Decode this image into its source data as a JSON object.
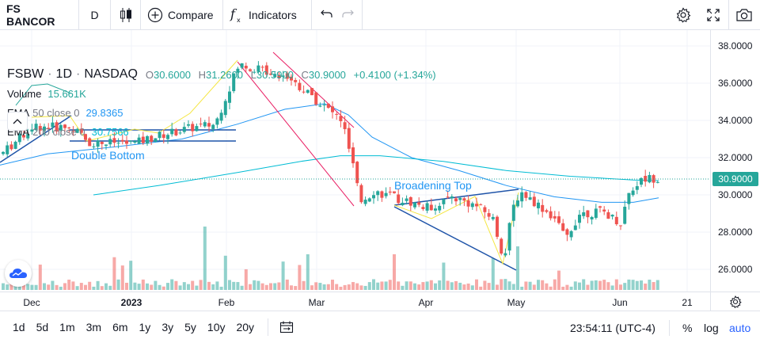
{
  "toolbar": {
    "symbol": "FS BANCOR",
    "interval": "D",
    "compare_label": "Compare",
    "indicators_label": "Indicators"
  },
  "legend": {
    "ticker": "FSBW",
    "interval": "1D",
    "exchange": "NASDAQ",
    "open_k": "O",
    "open": "30.6000",
    "high_k": "H",
    "high": "31.2600",
    "low_k": "L",
    "low": "30.5900",
    "close_k": "C",
    "close": "30.9000",
    "change": "+0.4100 (+1.34%)",
    "volume_name": "Volume",
    "volume_value": "15.661K",
    "ema1_name": "EMA",
    "ema1_params": "50 close 0",
    "ema1_value": "29.8365",
    "ema2_name": "EMA",
    "ema2_params": "200 close 0",
    "ema2_value": "30.7566"
  },
  "drawings": {
    "double_bottom_label": "Double Bottom",
    "broadening_top_label": "Broadening Top"
  },
  "price_axis": {
    "ticks": [
      "38.0000",
      "36.0000",
      "34.0000",
      "32.0000",
      "30.0000",
      "28.0000",
      "26.0000"
    ],
    "last_price_label": "30.9000"
  },
  "time_axis": {
    "ticks": [
      "Dec",
      "2023",
      "Feb",
      "Mar",
      "Apr",
      "May",
      "Jun",
      "21"
    ]
  },
  "bottom": {
    "ranges": [
      "1d",
      "5d",
      "1m",
      "3m",
      "6m",
      "1y",
      "3y",
      "5y",
      "10y",
      "20y"
    ],
    "clock": "23:54:11 (UTC-4)",
    "percent_label": "%",
    "log_label": "log",
    "auto_label": "auto"
  },
  "colors": {
    "up": "#26a69a",
    "down": "#ef5350",
    "ema50": "#2196f3",
    "ema200": "#00bcd4",
    "accent": "#2962ff",
    "last_price_bg": "#26a69a"
  },
  "icons": {
    "chart_type": "candles-icon",
    "compare": "plus-circle-icon",
    "indicators": "fx-icon",
    "undo": "undo-icon",
    "redo": "redo-icon",
    "settings": "gear-icon",
    "fullscreen": "fullscreen-icon",
    "screenshot": "camera-icon",
    "axis_settings": "gear-icon",
    "date_range": "calendar-range-icon",
    "logo": "tradingview-logo"
  }
}
